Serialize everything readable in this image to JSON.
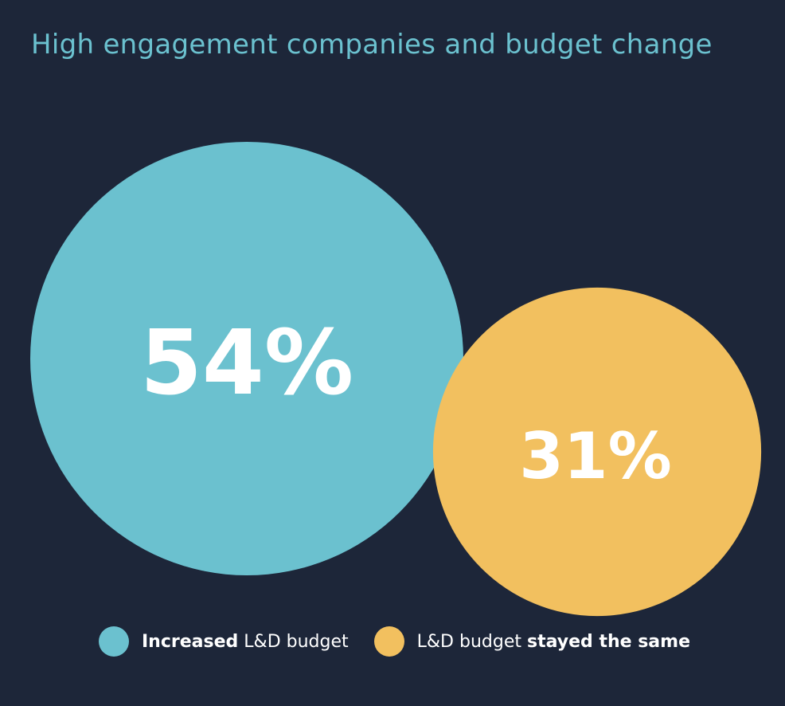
{
  "colors": {
    "background": "#1d2639",
    "title": "#6bc1cf",
    "increased": "#6bc1cf",
    "same": "#f2c05f",
    "label": "#ffffff"
  },
  "chart_data": {
    "type": "bubble",
    "title": "High engagement companies and budget change",
    "unit": "%",
    "series": [
      {
        "key": "increased",
        "value": 54,
        "display": "54%",
        "legend_bold": "Increased",
        "legend_rest": "L&D budget",
        "color": "#6bc1cf"
      },
      {
        "key": "same",
        "value": 31,
        "display": "31%",
        "legend_prefix": "L&D budget",
        "legend_bold": "stayed the same",
        "color": "#f2c05f"
      }
    ],
    "legend_position": "bottom"
  }
}
